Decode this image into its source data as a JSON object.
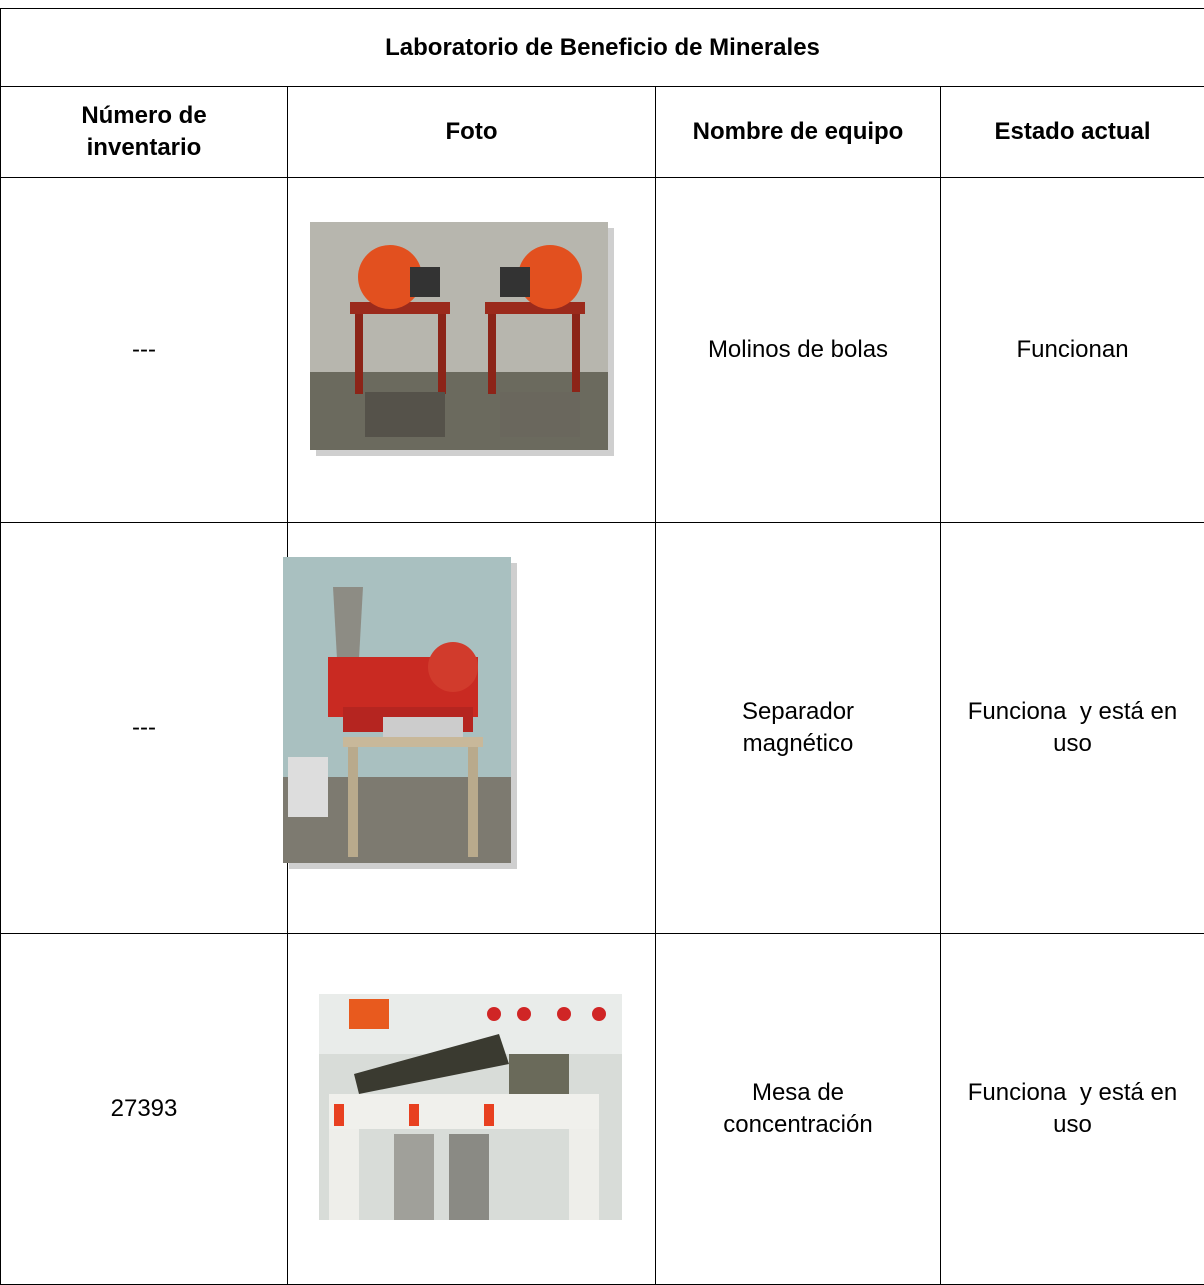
{
  "table": {
    "title": "Laboratorio de Beneficio de Minerales",
    "header": [
      "Número de inventario",
      "Foto",
      "Nombre de equipo",
      "Estado actual"
    ],
    "rows": [
      {
        "inventario": "---",
        "nombre": "Molinos de bolas",
        "estado": "Funcionan"
      },
      {
        "inventario": "---",
        "nombre": "Separador magnético",
        "estado": "Funciona  y está en uso"
      },
      {
        "inventario": "27393",
        "nombre": "Mesa de concentración",
        "estado": "Funciona  y está en uso"
      }
    ]
  }
}
